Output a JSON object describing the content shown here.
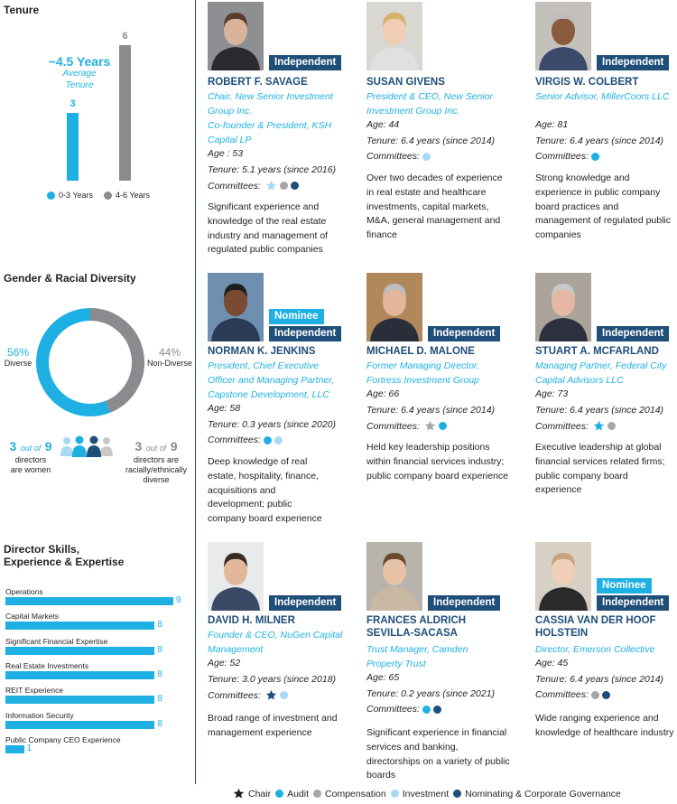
{
  "colors": {
    "navy": "#1f4e79",
    "cyan": "#1fb0e3",
    "gray": "#8a8b8e",
    "light_blue": "#a9d8f2",
    "mid_gray": "#a6a6a6"
  },
  "tenure": {
    "title": "Tenure",
    "avg_value": "~4.5 Years",
    "avg_label_1": "Average",
    "avg_label_2": "Tenure",
    "chart_data": {
      "type": "bar",
      "categories": [
        "0-3 Years",
        "4-6 Years"
      ],
      "values": [
        3,
        6
      ],
      "ylim": [
        0,
        6
      ]
    },
    "legend": [
      "0-3 Years",
      "4-6 Years"
    ]
  },
  "diversity": {
    "title": "Gender & Racial Diversity",
    "chart_data": {
      "type": "pie",
      "categories": [
        "Diverse",
        "Non-Diverse"
      ],
      "values": [
        56,
        44
      ]
    },
    "diverse_pct": "56%",
    "diverse_label": "Diverse",
    "nondiverse_pct": "44%",
    "nondiverse_label": "Non-Diverse",
    "women_num": "3",
    "women_of": "out of",
    "women_total": "9",
    "women_text_1": "directors",
    "women_text_2": "are women",
    "racial_num": "3",
    "racial_of": "out of",
    "racial_total": "9",
    "racial_text_1": "directors are",
    "racial_text_2": "racially/ethnically",
    "racial_text_3": "diverse"
  },
  "skills": {
    "title_1": "Director Skills,",
    "title_2": "Experience & Expertise",
    "chart_data": {
      "type": "bar",
      "categories": [
        "Operations",
        "Capital Markets",
        "Significant Financial Expertise",
        "Real Estate Investments",
        "REIT Experience",
        "Information Security",
        "Public Company CEO Experience"
      ],
      "values": [
        9,
        8,
        8,
        8,
        8,
        8,
        1
      ],
      "xlim": [
        0,
        9
      ]
    },
    "labels": [
      "Operations",
      "Capital Markets",
      "Significant Financial Expertise",
      "Real Estate Investments",
      "REIT Experience",
      "Information Security",
      "Public Company CEO Experience"
    ],
    "values": [
      "9",
      "8",
      "8",
      "8",
      "8",
      "8",
      "1"
    ]
  },
  "directors": [
    {
      "name_1": "ROBERT F. SAVAGE",
      "name_2": "",
      "badges": [
        "Independent"
      ],
      "role": "Chair, New Senior Investment Group Inc.",
      "role2": "Co-founder & President, KSH Capital LP",
      "age": "Age : 53",
      "tenure": "Tenure: 5.1 years (since 2016)",
      "committees_label": "Committees:",
      "committees": [
        "chair-investment",
        "compensation",
        "nominating"
      ],
      "desc": "Significant experience and knowledge of the real estate industry and management of regulated public companies"
    },
    {
      "name_1": "SUSAN GIVENS",
      "name_2": "",
      "badges": [],
      "role": "President & CEO, New Senior Investment Group Inc.",
      "role2": "",
      "age": "Age: 44",
      "tenure": "Tenure: 6.4 years (since 2014)",
      "committees_label": "Committees:",
      "committees": [
        "investment"
      ],
      "desc": "Over two decades of experience in real estate and healthcare investments, capital markets, M&A, general management and finance"
    },
    {
      "name_1": "VIRGIS W. COLBERT",
      "name_2": "",
      "badges": [
        "Independent"
      ],
      "role": "Senior Advisor, MillerCoors LLC",
      "role2": "",
      "age": "Age: 81",
      "tenure": "Tenure: 6.4 years (since 2014)",
      "committees_label": "Committees:",
      "committees": [
        "audit"
      ],
      "desc": "Strong knowledge and experience in public company board practices and management of regulated public companies"
    },
    {
      "name_1": "NORMAN K. JENKINS",
      "name_2": "",
      "badges": [
        "Nominee",
        "Independent"
      ],
      "role": "President, Chief Executive Officer and Managing Partner, Capstone Development, LLC",
      "role2": "",
      "age": "Age: 58",
      "tenure": "Tenure: 0.3 years (since 2020)",
      "committees_label": "Committees:",
      "committees": [
        "audit",
        "investment"
      ],
      "desc": "Deep knowledge of real estate, hospitality, finance, acquisitions and development; public company board experience"
    },
    {
      "name_1": "MICHAEL D. MALONE",
      "name_2": "",
      "badges": [
        "Independent"
      ],
      "role": "Former Managing Director, Fortress Investment Group",
      "role2": "",
      "age": "Age: 66",
      "tenure": "Tenure: 6.4 years (since 2014)",
      "committees_label": "Committees:",
      "committees": [
        "chair-compensation",
        "audit"
      ],
      "desc": "Held key leadership positions within financial services industry; public company board experience"
    },
    {
      "name_1": "STUART A. MCFARLAND",
      "name_2": "",
      "badges": [
        "Independent"
      ],
      "role": "Managing Partner, Federal City Capital Advisors LLC",
      "role2": "",
      "age": "Age: 73",
      "tenure": "Tenure: 6.4 years (since 2014)",
      "committees_label": "Committees:",
      "committees": [
        "chair-audit",
        "compensation"
      ],
      "desc": "Executive leadership at global financial services related firms; public company board experience"
    },
    {
      "name_1": "DAVID H. MILNER",
      "name_2": "",
      "badges": [
        "Independent"
      ],
      "role": "Founder & CEO, NuGen Capital Management",
      "role2": "",
      "age": "Age: 52",
      "tenure": "Tenure: 3.0 years (since 2018)",
      "committees_label": "Committees:",
      "committees": [
        "chair-nominating",
        "investment"
      ],
      "desc": "Broad range of investment and management experience"
    },
    {
      "name_1": "FRANCES ALDRICH",
      "name_2": "SEVILLA-SACASA",
      "badges": [
        "Independent"
      ],
      "role": "Trust Manager, Camden Property Trust",
      "role2": "",
      "age": "Age: 65",
      "tenure": "Tenure: 0.2 years (since 2021)",
      "committees_label": "Committees:",
      "committees": [
        "audit",
        "nominating"
      ],
      "desc": "Significant experience in financial services and  banking, directorships on a variety of public boards"
    },
    {
      "name_1": "CASSIA VAN DER HOOF",
      "name_2": "HOLSTEIN",
      "badges": [
        "Nominee",
        "Independent"
      ],
      "role": "Director, Emerson Collective",
      "role2": "",
      "age": "Age: 45",
      "tenure": "Tenure: 6.4 years (since 2014)",
      "committees_label": "Committees:",
      "committees": [
        "compensation",
        "nominating"
      ],
      "desc": "Wide ranging experience and knowledge of healthcare industry"
    }
  ],
  "legend": {
    "chair": "Chair",
    "audit": "Audit",
    "compensation": "Compensation",
    "investment": "Investment",
    "nominating": "Nominating & Corporate Governance"
  }
}
